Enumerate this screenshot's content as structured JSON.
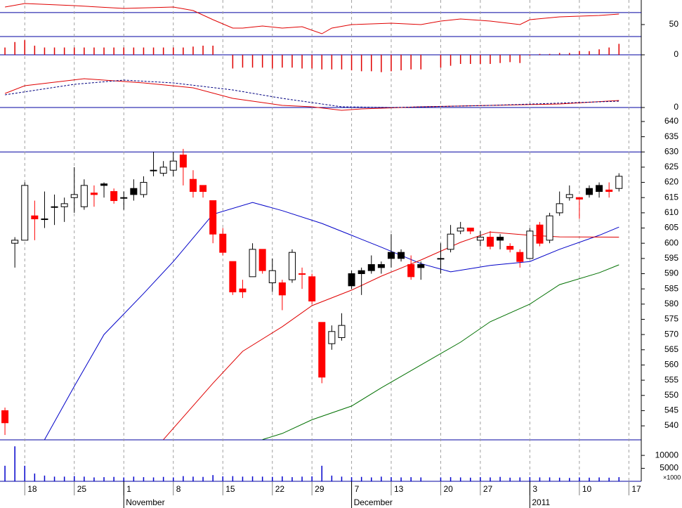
{
  "chart_data": [
    {
      "type": "line",
      "xlim": [
        -0.5,
        64.25
      ],
      "ylim": [
        30,
        91
      ],
      "yticks": [
        50
      ],
      "ref_lines": [
        70
      ],
      "series": [
        {
          "color": "#e00000",
          "x": [
            0,
            2,
            7,
            12,
            17,
            19,
            21,
            23,
            24,
            26,
            28,
            30,
            32,
            33,
            35,
            39,
            42,
            44,
            46,
            49,
            52,
            53,
            56,
            60,
            62
          ],
          "values": [
            79.3,
            85.1,
            81.6,
            76.9,
            79.3,
            73.4,
            58.2,
            44.1,
            44.1,
            47.6,
            44.1,
            46.4,
            34.7,
            44.1,
            49.9,
            52.3,
            49.9,
            55.8,
            59.3,
            55.8,
            49.9,
            58.2,
            62.8,
            65.2,
            67.5
          ]
        }
      ]
    },
    {
      "type": "bar",
      "xlim": [
        -0.5,
        64.25
      ],
      "ylim": [
        -1,
        1
      ],
      "yticks": [
        0
      ],
      "grid": true,
      "color": "#e00000",
      "values": [
        0.4,
        0.7,
        0.8,
        0.5,
        0.4,
        0.4,
        0.4,
        0.4,
        0.4,
        0.4,
        0.4,
        0.4,
        0.4,
        0.4,
        0.4,
        0.4,
        0.4,
        0.4,
        0.4,
        0.45,
        0.5,
        0.5,
        0,
        -0.75,
        -0.7,
        -0.7,
        -0.7,
        -0.75,
        -0.7,
        -0.7,
        -0.75,
        -0.75,
        -0.8,
        -0.8,
        -0.8,
        -0.85,
        -0.9,
        -0.9,
        -0.95,
        -0.9,
        -0.85,
        -0.8,
        -0.8,
        null,
        -0.7,
        -0.6,
        -0.5,
        -0.5,
        -0.5,
        -0.5,
        -0.45,
        -0.4,
        -0.45,
        -0.05,
        0.05,
        0.05,
        0.1,
        0.1,
        0.2,
        0.2,
        0.3,
        0.4,
        0.6
      ]
    },
    {
      "type": "line",
      "xlim": [
        -0.5,
        64.25
      ],
      "ylim": [
        -7,
        75
      ],
      "yticks": [
        0
      ],
      "grid": true,
      "series": [
        {
          "color": "#e00000",
          "x": [
            0,
            2,
            8,
            14,
            19,
            23,
            28,
            31,
            34,
            36,
            42,
            49,
            56,
            62
          ],
          "values": [
            20,
            31,
            41,
            35,
            28,
            13,
            3,
            1,
            -4,
            -2,
            1,
            3,
            5,
            10
          ]
        },
        {
          "color": "#000080",
          "dash": true,
          "x": [
            0,
            7,
            12,
            17,
            23,
            28,
            34,
            39,
            49,
            62
          ],
          "values": [
            18,
            33,
            39,
            35,
            25,
            13,
            1,
            0,
            3,
            9
          ]
        }
      ]
    },
    {
      "type": "candlestick",
      "xlim": [
        -0.5,
        64.25
      ],
      "ylim": [
        535.4,
        644.6
      ],
      "yticks": [
        540,
        545,
        550,
        555,
        560,
        565,
        570,
        575,
        580,
        585,
        590,
        595,
        600,
        605,
        610,
        615,
        620,
        625,
        630,
        635,
        640
      ],
      "ref_lines": [
        630
      ],
      "open": [
        545,
        600,
        601,
        609,
        608,
        612,
        612,
        615,
        612,
        616.5,
        619,
        617,
        615,
        616,
        616,
        624,
        623,
        624,
        629,
        621,
        619,
        614,
        603,
        594,
        585,
        589,
        598,
        587,
        587,
        588,
        590,
        589,
        574,
        567,
        569,
        586,
        590,
        591,
        592,
        595,
        595,
        593,
        592,
        null,
        595,
        598,
        604,
        605,
        601,
        602,
        601,
        599,
        597,
        595,
        606,
        601,
        610,
        615,
        615,
        616,
        617,
        617.5,
        618
      ],
      "high": [
        546,
        602,
        620,
        614,
        617,
        616,
        615,
        625,
        621,
        619,
        620,
        618,
        617,
        621,
        622,
        630,
        627,
        630,
        631,
        624,
        619,
        614,
        605,
        594,
        588,
        600,
        598,
        595,
        588,
        598,
        592,
        590,
        574,
        573,
        577,
        591,
        592,
        596,
        594,
        603,
        598,
        596,
        594,
        null,
        600,
        606,
        607,
        605,
        604,
        604,
        603,
        600,
        598,
        605,
        607,
        610,
        617,
        619,
        615,
        619,
        620,
        620,
        623
      ],
      "low": [
        537,
        592,
        601,
        601,
        605,
        606,
        607,
        610,
        611,
        612,
        615,
        613,
        611,
        614,
        615,
        622,
        622,
        622,
        619,
        615,
        615,
        600,
        596,
        583,
        582,
        589,
        590,
        584,
        578,
        587,
        585,
        580,
        554,
        565,
        568,
        585,
        583,
        590,
        590,
        592,
        594,
        588,
        588,
        null,
        590,
        597,
        603,
        603,
        599,
        598,
        598,
        597,
        592,
        595,
        599,
        600,
        609,
        614,
        608,
        615,
        615,
        615,
        617
      ],
      "close": [
        541,
        601,
        619,
        608,
        608,
        612,
        613,
        616,
        619,
        616,
        619.5,
        614,
        615,
        618,
        620,
        624,
        625,
        627,
        625,
        617,
        617,
        603,
        597,
        584,
        584,
        598,
        591,
        591,
        583,
        597,
        590,
        581,
        556,
        571,
        573,
        590,
        591,
        593,
        593,
        597,
        597,
        589,
        593,
        null,
        595,
        603,
        605,
        604,
        602,
        599,
        602,
        598,
        594,
        604,
        600,
        609,
        613,
        616,
        614.5,
        618,
        619,
        617,
        622
      ],
      "colors": [
        "#ff0000",
        "#ffffff",
        "#ffffff",
        "#ff0000",
        "#000000",
        "#000000",
        "#ffffff",
        "#ffffff",
        "#ffffff",
        "#ff0000",
        "#000000",
        "#ff0000",
        "#000000",
        "#000000",
        "#ffffff",
        "#000000",
        "#ffffff",
        "#ffffff",
        "#ff0000",
        "#ff0000",
        "#ff0000",
        "#ff0000",
        "#ff0000",
        "#ff0000",
        "#ff0000",
        "#ffffff",
        "#ff0000",
        "#ffffff",
        "#ff0000",
        "#ffffff",
        "#ff0000",
        "#ff0000",
        "#ff0000",
        "#ffffff",
        "#ffffff",
        "#000000",
        "#000000",
        "#000000",
        "#000000",
        "#000000",
        "#000000",
        "#ff0000",
        "#000000",
        null,
        "#000000",
        "#ffffff",
        "#ffffff",
        "#ff0000",
        "#ffffff",
        "#ff0000",
        "#000000",
        "#ff0000",
        "#ff0000",
        "#ffffff",
        "#ff0000",
        "#ffffff",
        "#ffffff",
        "#ffffff",
        "#ff0000",
        "#000000",
        "#000000",
        "#ff0000",
        "#ffffff"
      ],
      "series": [
        {
          "color": "#0000c8",
          "x": [
            4,
            7,
            10,
            14,
            17,
            21,
            25,
            28,
            32,
            35,
            38,
            42,
            45,
            49,
            53,
            56,
            60,
            62
          ],
          "values": [
            535.5,
            553,
            570,
            583.5,
            594,
            609.5,
            613.4,
            610.7,
            606.5,
            602.6,
            598.7,
            593.3,
            590.6,
            592.7,
            594,
            598,
            602.6,
            605.3
          ]
        },
        {
          "color": "#e00000",
          "x": [
            16,
            21,
            24,
            28,
            31,
            35,
            38,
            42,
            46,
            49,
            53,
            56,
            62
          ],
          "values": [
            535.5,
            554,
            564.5,
            572.6,
            579.5,
            584.6,
            589.2,
            594.5,
            600.3,
            603.7,
            602.6,
            602.1,
            602
          ]
        },
        {
          "color": "#007000",
          "x": [
            26,
            28,
            31,
            35,
            38,
            42,
            46,
            49,
            53,
            56,
            60,
            62
          ],
          "values": [
            535.5,
            537.5,
            542,
            546.5,
            552.5,
            560,
            567.5,
            574.2,
            580,
            586.4,
            590.3,
            592.9
          ]
        }
      ],
      "xticks": [
        {
          "value": 2,
          "label": "18"
        },
        {
          "value": 7,
          "label": "25"
        },
        {
          "value": 12,
          "label": "1"
        },
        {
          "value": 17,
          "label": "8"
        },
        {
          "value": 22,
          "label": "15"
        },
        {
          "value": 27,
          "label": "22"
        },
        {
          "value": 31,
          "label": "29"
        },
        {
          "value": 35,
          "label": "7"
        },
        {
          "value": 39,
          "label": "13"
        },
        {
          "value": 44,
          "label": "20"
        },
        {
          "value": 48,
          "label": "27"
        },
        {
          "value": 53,
          "label": "3"
        },
        {
          "value": 58,
          "label": "10"
        },
        {
          "value": 63,
          "label": "17"
        }
      ],
      "month_ticks": [
        {
          "value": 12,
          "label": "November"
        },
        {
          "value": 35,
          "label": "December"
        },
        {
          "value": 53,
          "label": "2011"
        }
      ]
    },
    {
      "type": "bar",
      "xlim": [
        -0.5,
        64.25
      ],
      "ylim": [
        0,
        16000
      ],
      "yticks": [
        5000,
        10000
      ],
      "color": "#0000cc",
      "unit_label": "×1000",
      "values": [
        6000,
        13500,
        6000,
        3000,
        2200,
        1800,
        1800,
        2000,
        1800,
        1500,
        1600,
        1700,
        1500,
        1800,
        1600,
        1500,
        1700,
        1500,
        2000,
        1800,
        1700,
        2400,
        1900,
        2000,
        1800,
        1900,
        1800,
        1700,
        1900,
        1600,
        1800,
        1900,
        6000,
        2200,
        1800,
        1600,
        1700,
        1500,
        1800,
        1600,
        1500,
        1600,
        1500,
        null,
        1500,
        1600,
        1500,
        1400,
        1600,
        1500,
        1700,
        1400,
        1500,
        1600,
        1500,
        1500,
        1400,
        1300,
        1500,
        1400,
        1500,
        1400,
        1600
      ]
    }
  ]
}
